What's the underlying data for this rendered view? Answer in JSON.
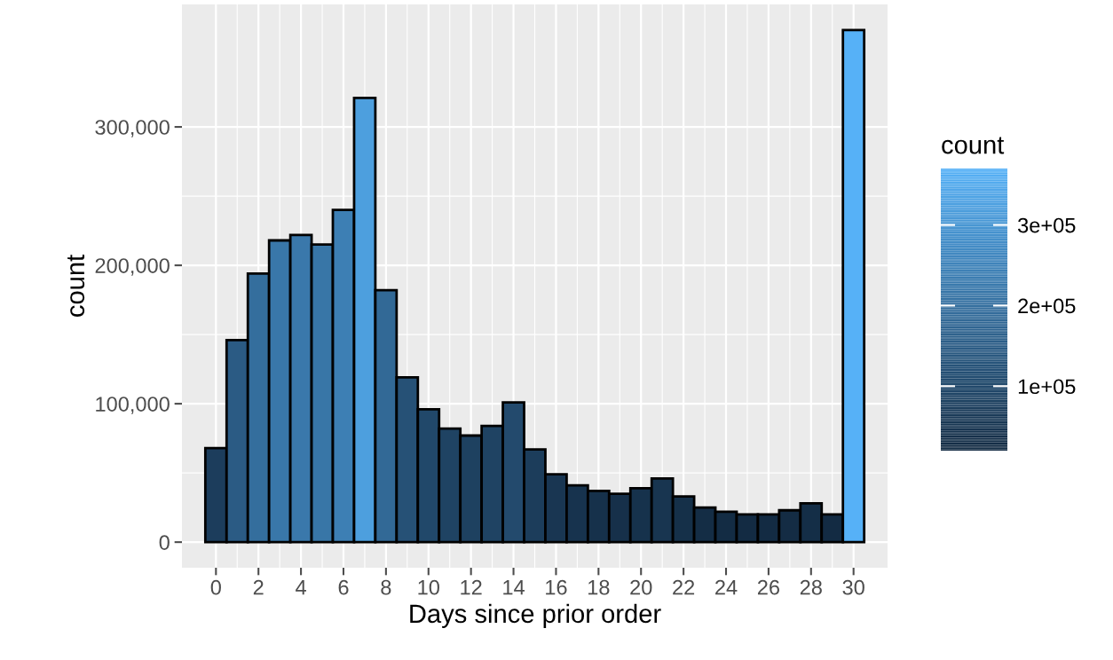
{
  "chart_data": {
    "type": "histogram",
    "xlabel": "Days since prior order",
    "ylabel": "count",
    "clabel": "count",
    "bins": [
      -0.5,
      0.5,
      1.5,
      2.5,
      3.5,
      4.5,
      5.5,
      6.5,
      7.5,
      8.5,
      9.5,
      10.5,
      11.5,
      12.5,
      13.5,
      14.5,
      15.5,
      16.5,
      17.5,
      18.5,
      19.5,
      20.5,
      21.5,
      22.5,
      23.5,
      24.5,
      25.5,
      26.5,
      27.5,
      28.5,
      29.5,
      30.5
    ],
    "values": [
      68000,
      146000,
      194000,
      218000,
      222000,
      215000,
      240000,
      321000,
      182000,
      119000,
      96000,
      82000,
      77000,
      84000,
      101000,
      67000,
      49000,
      41000,
      37000,
      35000,
      39000,
      46000,
      33000,
      25000,
      22000,
      20000,
      20000,
      23000,
      28000,
      20000,
      370000
    ],
    "xlim": [
      -1.6,
      31.6
    ],
    "xticks": [
      0,
      2,
      4,
      6,
      8,
      10,
      12,
      14,
      16,
      18,
      20,
      22,
      24,
      26,
      28,
      30
    ],
    "ylim": [
      -18500,
      388500
    ],
    "yticks": [
      {
        "value": 0,
        "label": "0"
      },
      {
        "value": 100000,
        "label": "100,000"
      },
      {
        "value": 200000,
        "label": "200,000"
      },
      {
        "value": 300000,
        "label": "300,000"
      }
    ],
    "clim": [
      20000,
      370000
    ],
    "cticks": [
      {
        "value": 100000,
        "label": "1e+05"
      },
      {
        "value": 200000,
        "label": "2e+05"
      },
      {
        "value": 300000,
        "label": "3e+05"
      }
    ],
    "grid": true
  }
}
